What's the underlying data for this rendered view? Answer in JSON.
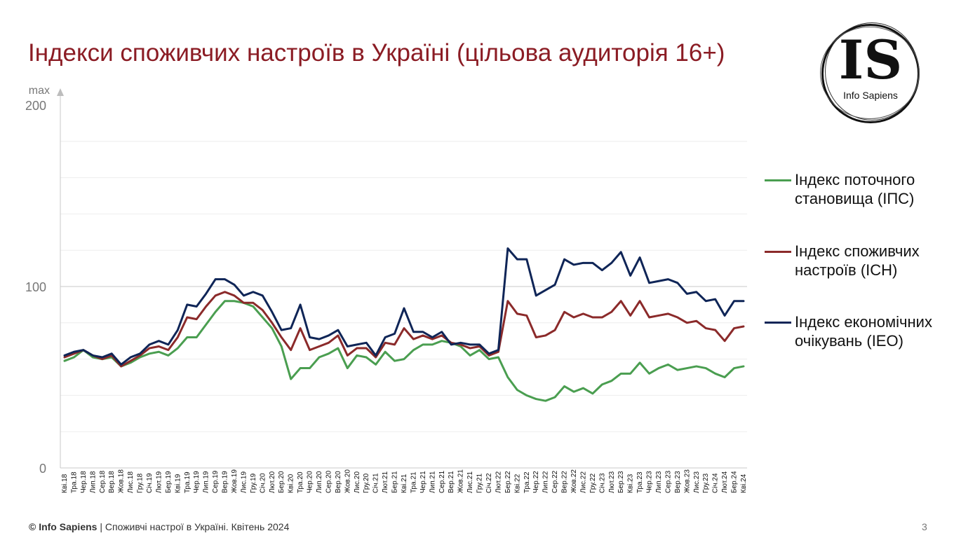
{
  "slide": {
    "title": "Індекси споживчих настроїв в Україні (цільова аудиторія 16+)",
    "page_number": "3"
  },
  "logo": {
    "mark": "IS",
    "name": "Info Sapiens"
  },
  "footer": {
    "brand": "© Info Sapiens",
    "separator": " | ",
    "text": "Споживчі настрої в Україні. Квітень 2024"
  },
  "chart_data": {
    "type": "line",
    "ylim": [
      0,
      200
    ],
    "y_ticks": [
      {
        "value": 0,
        "label": "0"
      },
      {
        "value": 100,
        "label": "100"
      },
      {
        "value": 200,
        "label": "200"
      }
    ],
    "y_max_label": "max",
    "grid": true,
    "legend_position": "right",
    "categories": [
      "Кві.18",
      "Тра.18",
      "Чер.18",
      "Лип.18",
      "Сер.18",
      "Вер.18",
      "Жов.18",
      "Лис.18",
      "Гру.18",
      "Січ.19",
      "Лют.19",
      "Бер.19",
      "Кві.19",
      "Тра.19",
      "Чер.19",
      "Лип.19",
      "Сер.19",
      "Вер.19",
      "Жов.19",
      "Лис.19",
      "Гру.19",
      "Січ.20",
      "Лют.20",
      "Бер.20",
      "Кві.20",
      "Тра.20",
      "Чер.20",
      "Лип.20",
      "Сер.20",
      "Вер.20",
      "Жов.20",
      "Лис.20",
      "Гру.20",
      "Січ.21",
      "Лют.21",
      "Бер.21",
      "Кві.21",
      "Тра.21",
      "Чер.21",
      "Лип.21",
      "Сер.21",
      "Вер.21",
      "Жов.21",
      "Лис.21",
      "Гру.21",
      "Січ.22",
      "Лют.22",
      "Бер.22",
      "Кві.22",
      "Тра.22",
      "Чер.22",
      "Лип.22",
      "Сер.22",
      "Вер.22",
      "Жов.22",
      "Лис.22",
      "Гру.22",
      "Січ.23",
      "Лют.23",
      "Бер.23",
      "Кві.23",
      "Тра.23",
      "Чер.23",
      "Лип.23",
      "Сер.23",
      "Вер.23",
      "Жов.23",
      "Лис.23",
      "Гру.23",
      "Січ.24",
      "Лют.24",
      "Бер.24",
      "Кві.24"
    ],
    "series": [
      {
        "name": "Індекс поточного становища (ІПС)",
        "color": "#4a9e50",
        "values": [
          59,
          61,
          65,
          61,
          60,
          61,
          56,
          58,
          61,
          63,
          64,
          62,
          66,
          72,
          72,
          79,
          86,
          92,
          92,
          91,
          89,
          83,
          77,
          67,
          49,
          55,
          55,
          61,
          63,
          66,
          55,
          62,
          61,
          57,
          64,
          59,
          60,
          65,
          68,
          68,
          70,
          69,
          67,
          62,
          65,
          60,
          61,
          50,
          43,
          40,
          38,
          37,
          39,
          45,
          42,
          44,
          41,
          46,
          48,
          52,
          52,
          58,
          52,
          55,
          57,
          54,
          55,
          56,
          55,
          52,
          50,
          55,
          56
        ],
        "labels_sample": null
      },
      {
        "name": "Індекс споживчих настроїв (ІСН)",
        "color": "#8b2a2a",
        "values": [
          61,
          63,
          65,
          62,
          60,
          62,
          56,
          59,
          62,
          66,
          67,
          65,
          72,
          83,
          82,
          89,
          95,
          97,
          95,
          91,
          91,
          87,
          80,
          72,
          65,
          77,
          65,
          67,
          69,
          73,
          62,
          66,
          66,
          61,
          69,
          68,
          77,
          71,
          73,
          71,
          73,
          69,
          68,
          66,
          67,
          62,
          64,
          92,
          85,
          84,
          72,
          73,
          76,
          86,
          83,
          85,
          83,
          83,
          86,
          92,
          84,
          92,
          83,
          84,
          85,
          83,
          80,
          81,
          77,
          76,
          70,
          77,
          78
        ]
      },
      {
        "name": "Індекс економічних очікувань (ІЕО)",
        "color": "#0f2557",
        "values": [
          62,
          64,
          65,
          62,
          61,
          63,
          57,
          61,
          63,
          68,
          70,
          68,
          76,
          90,
          89,
          96,
          104,
          104,
          101,
          95,
          97,
          95,
          86,
          76,
          77,
          90,
          72,
          71,
          73,
          76,
          67,
          68,
          69,
          62,
          72,
          74,
          88,
          75,
          75,
          72,
          75,
          68,
          69,
          68,
          68,
          63,
          65,
          121,
          115,
          115,
          95,
          98,
          101,
          115,
          112,
          113,
          113,
          109,
          113,
          119,
          106,
          116,
          102,
          103,
          104,
          102,
          96,
          97,
          92,
          93,
          84,
          92,
          92
        ]
      }
    ]
  }
}
